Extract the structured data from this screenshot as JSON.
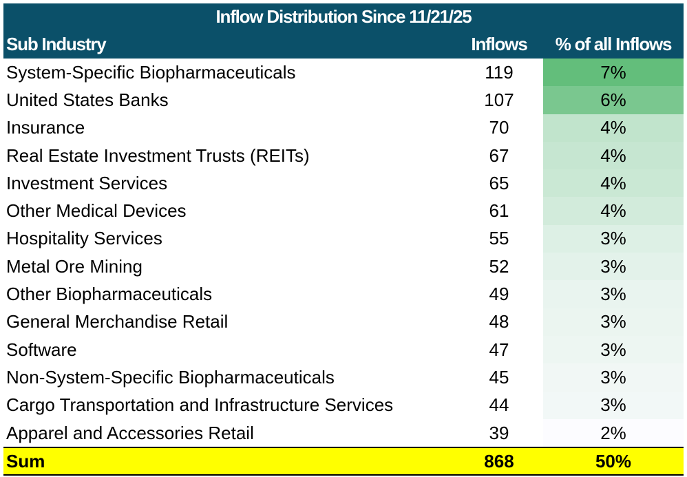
{
  "chart_data": {
    "type": "table",
    "title": "Inflow Distribution Since 11/21/25",
    "columns": [
      "Sub Industry",
      "Inflows",
      "% of all Inflows"
    ],
    "rows": [
      [
        "System-Specific Biopharmaceuticals",
        "119",
        "7%"
      ],
      [
        "United States Banks",
        "107",
        "6%"
      ],
      [
        "Insurance",
        "70",
        "4%"
      ],
      [
        "Real Estate Investment Trusts (REITs)",
        "67",
        "4%"
      ],
      [
        "Investment Services",
        "65",
        "4%"
      ],
      [
        "Other Medical Devices",
        "61",
        "4%"
      ],
      [
        "Hospitality Services",
        "55",
        "3%"
      ],
      [
        "Metal Ore Mining",
        "52",
        "3%"
      ],
      [
        "Other Biopharmaceuticals",
        "49",
        "3%"
      ],
      [
        "General Merchandise Retail",
        "48",
        "3%"
      ],
      [
        "Software",
        "47",
        "3%"
      ],
      [
        "Non-System-Specific Biopharmaceuticals",
        "45",
        "3%"
      ],
      [
        "Cargo Transportation and Infrastructure Services",
        "44",
        "3%"
      ],
      [
        "Apparel and Accessories Retail",
        "39",
        "2%"
      ]
    ],
    "sum": [
      "Sum",
      "868",
      "50%"
    ],
    "colors": {
      "header": "#0b5069",
      "scale_max": "#63be7b",
      "scale_min": "#fcfcff",
      "sum_row": "#ffff00"
    }
  }
}
